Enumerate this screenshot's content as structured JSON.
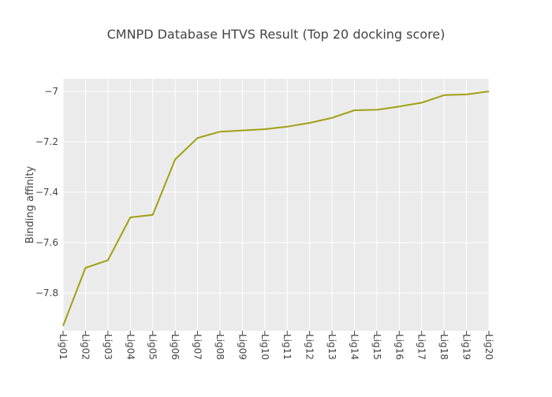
{
  "chart_data": {
    "type": "line",
    "title": "CMNPD Database HTVS Result (Top 20 docking score)",
    "xlabel": "",
    "ylabel": "Binding affinity",
    "categories": [
      "Lig01",
      "Lig02",
      "Lig03",
      "Lig04",
      "Lig05",
      "Lig06",
      "Lig07",
      "Lig08",
      "Lig09",
      "Lig10",
      "Lig11",
      "Lig12",
      "Lig13",
      "Lig14",
      "Lig15",
      "Lig16",
      "Lig17",
      "Lig18",
      "Lig19",
      "Lig20"
    ],
    "series": [
      {
        "values": [
          -7.93,
          -7.7,
          -7.67,
          -7.5,
          -7.49,
          -7.27,
          -7.185,
          -7.16,
          -7.155,
          -7.15,
          -7.14,
          -7.125,
          -7.105,
          -7.075,
          -7.073,
          -7.06,
          -7.045,
          -7.015,
          -7.012,
          -7.0
        ]
      }
    ],
    "yticks": [
      -7.8,
      -7.6,
      -7.4,
      -7.2,
      -7
    ],
    "ytick_labels": [
      "−7.8",
      "−7.6",
      "−7.4",
      "−7.2",
      "−7"
    ],
    "ylim": [
      -7.95,
      -6.95
    ],
    "grid": true,
    "colors": {
      "line": "#a0a012",
      "plot_background": "#ebebeb",
      "grid": "#ffffff",
      "text": "#444444"
    }
  }
}
